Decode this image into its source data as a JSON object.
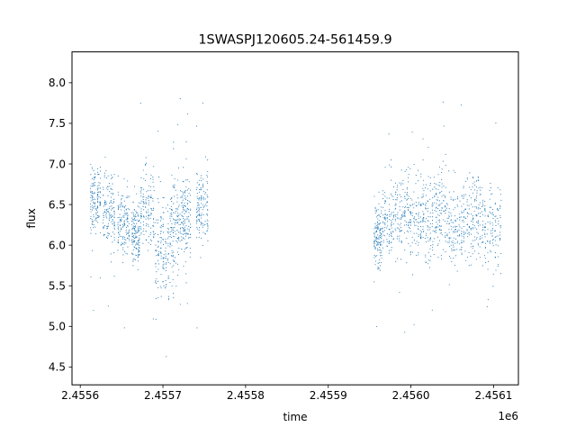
{
  "chart_data": {
    "type": "scatter",
    "title": "1SWASPJ120605.24-561459.9",
    "xlabel": "time",
    "ylabel": "flux",
    "x_offset_label": "1e6",
    "xlim": [
      2.45559,
      2.45613
    ],
    "ylim": [
      4.28,
      8.38
    ],
    "x_ticks": [
      2.4556,
      2.4557,
      2.4558,
      2.4559,
      2.456,
      2.4561
    ],
    "x_tick_labels": [
      "2.4556",
      "2.4557",
      "2.4558",
      "2.4559",
      "2.4560",
      "2.4561"
    ],
    "y_ticks": [
      4.5,
      5.0,
      5.5,
      6.0,
      6.5,
      7.0,
      7.5,
      8.0
    ],
    "y_tick_labels": [
      "4.5",
      "5.0",
      "5.5",
      "6.0",
      "6.5",
      "7.0",
      "7.5",
      "8.0"
    ],
    "grid": false,
    "marker_color": "#1f77b4",
    "series": [
      {
        "name": "",
        "observing_segments": [
          {
            "x_range": [
              2.455612,
              2.455625
            ],
            "y_mean": 6.55,
            "y_spread": 0.35
          },
          {
            "x_range": [
              2.455627,
              2.455642
            ],
            "y_mean": 6.45,
            "y_spread": 0.4
          },
          {
            "x_range": [
              2.455645,
              2.45566
            ],
            "y_mean": 6.25,
            "y_spread": 0.4
          },
          {
            "x_range": [
              2.455662,
              2.455672
            ],
            "y_mean": 6.15,
            "y_spread": 0.35
          },
          {
            "x_range": [
              2.455672,
              2.45569
            ],
            "y_mean": 6.45,
            "y_spread": 0.45
          },
          {
            "x_range": [
              2.45569,
              2.455708
            ],
            "y_mean": 5.95,
            "y_spread": 0.55
          },
          {
            "x_range": [
              2.455708,
              2.455722
            ],
            "y_mean": 6.25,
            "y_spread": 0.5
          },
          {
            "x_range": [
              2.455722,
              2.455734
            ],
            "y_mean": 6.3,
            "y_spread": 0.45
          },
          {
            "x_range": [
              2.45574,
              2.455755
            ],
            "y_mean": 6.45,
            "y_spread": 0.4
          },
          {
            "x_range": [
              2.455955,
              2.455965
            ],
            "y_mean": 6.1,
            "y_spread": 0.35
          },
          {
            "x_range": [
              2.455965,
              2.455985
            ],
            "y_mean": 6.35,
            "y_spread": 0.4
          },
          {
            "x_range": [
              2.455985,
              2.456005
            ],
            "y_mean": 6.4,
            "y_spread": 0.45
          },
          {
            "x_range": [
              2.456005,
              2.456025
            ],
            "y_mean": 6.3,
            "y_spread": 0.45
          },
          {
            "x_range": [
              2.456025,
              2.456045
            ],
            "y_mean": 6.4,
            "y_spread": 0.45
          },
          {
            "x_range": [
              2.456045,
              2.456065
            ],
            "y_mean": 6.25,
            "y_spread": 0.45
          },
          {
            "x_range": [
              2.456065,
              2.456085
            ],
            "y_mean": 6.35,
            "y_spread": 0.5
          },
          {
            "x_range": [
              2.456085,
              2.45611
            ],
            "y_mean": 6.25,
            "y_spread": 0.45
          }
        ]
      }
    ]
  }
}
